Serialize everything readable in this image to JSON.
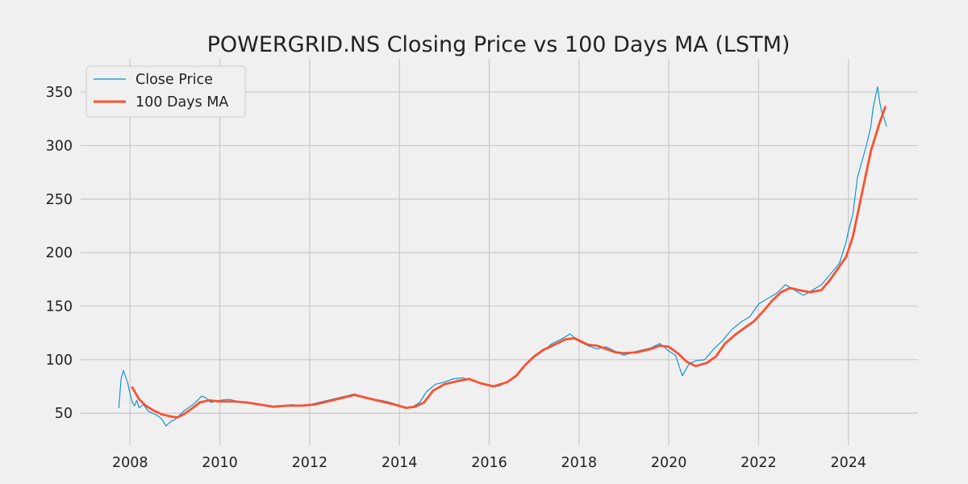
{
  "chart_data": {
    "type": "line",
    "title": "POWERGRID.NS Closing Price vs 100 Days MA (LSTM)",
    "xlabel": "",
    "ylabel": "",
    "xlim": [
      2006.9,
      2025.55
    ],
    "ylim": [
      20,
      381
    ],
    "x_ticks": [
      2008,
      2010,
      2012,
      2014,
      2016,
      2018,
      2020,
      2022,
      2024
    ],
    "x_tick_labels": [
      "2008",
      "2010",
      "2012",
      "2014",
      "2016",
      "2018",
      "2020",
      "2022",
      "2024"
    ],
    "y_ticks": [
      50,
      100,
      150,
      200,
      250,
      300,
      350
    ],
    "y_tick_labels": [
      "50",
      "100",
      "150",
      "200",
      "250",
      "300",
      "350"
    ],
    "grid": true,
    "legend_position": "top-left",
    "series": [
      {
        "name": "Close Price",
        "color": "#008fd5",
        "style": "thin-line",
        "x": [
          2007.75,
          2007.8,
          2007.85,
          2007.9,
          2007.95,
          2008.0,
          2008.05,
          2008.1,
          2008.15,
          2008.2,
          2008.3,
          2008.4,
          2008.5,
          2008.6,
          2008.7,
          2008.8,
          2008.9,
          2009.0,
          2009.1,
          2009.2,
          2009.3,
          2009.4,
          2009.5,
          2009.6,
          2009.7,
          2009.8,
          2009.9,
          2010.0,
          2010.2,
          2010.4,
          2010.6,
          2010.8,
          2011.0,
          2011.2,
          2011.4,
          2011.6,
          2011.8,
          2012.0,
          2012.2,
          2012.4,
          2012.6,
          2012.8,
          2013.0,
          2013.2,
          2013.4,
          2013.6,
          2013.8,
          2014.0,
          2014.15,
          2014.3,
          2014.45,
          2014.6,
          2014.8,
          2015.0,
          2015.2,
          2015.4,
          2015.6,
          2015.8,
          2016.0,
          2016.2,
          2016.4,
          2016.6,
          2016.8,
          2017.0,
          2017.2,
          2017.4,
          2017.6,
          2017.8,
          2018.0,
          2018.2,
          2018.4,
          2018.6,
          2018.8,
          2019.0,
          2019.2,
          2019.4,
          2019.6,
          2019.8,
          2020.0,
          2020.15,
          2020.3,
          2020.45,
          2020.6,
          2020.8,
          2021.0,
          2021.2,
          2021.4,
          2021.6,
          2021.8,
          2022.0,
          2022.2,
          2022.4,
          2022.6,
          2022.8,
          2023.0,
          2023.2,
          2023.4,
          2023.6,
          2023.8,
          2023.95,
          2024.0,
          2024.1,
          2024.2,
          2024.3,
          2024.4,
          2024.5,
          2024.55,
          2024.6,
          2024.65,
          2024.7,
          2024.75,
          2024.8,
          2024.85
        ],
        "values": [
          55,
          82,
          90,
          84,
          78,
          68,
          60,
          57,
          62,
          55,
          58,
          52,
          50,
          48,
          45,
          38,
          42,
          44,
          48,
          52,
          55,
          58,
          62,
          66,
          64,
          60,
          61,
          62,
          63,
          61,
          60,
          58,
          57,
          56,
          57,
          58,
          57,
          58,
          60,
          62,
          64,
          66,
          68,
          65,
          63,
          62,
          60,
          57,
          55,
          56,
          60,
          70,
          77,
          79,
          82,
          83,
          81,
          78,
          76,
          75,
          79,
          84,
          95,
          102,
          108,
          115,
          119,
          124,
          117,
          113,
          110,
          112,
          108,
          104,
          107,
          109,
          111,
          115,
          108,
          104,
          85,
          96,
          99,
          100,
          110,
          118,
          128,
          135,
          140,
          152,
          157,
          162,
          170,
          165,
          160,
          165,
          170,
          180,
          190,
          210,
          220,
          236,
          270,
          285,
          300,
          318,
          335,
          345,
          355,
          340,
          330,
          325,
          318
        ]
      },
      {
        "name": "100 Days MA",
        "color": "#fc4f30",
        "style": "thick-line",
        "x": [
          2008.05,
          2008.2,
          2008.35,
          2008.5,
          2008.7,
          2008.9,
          2009.05,
          2009.2,
          2009.4,
          2009.55,
          2009.75,
          2010.0,
          2010.3,
          2010.6,
          2010.9,
          2011.2,
          2011.5,
          2011.8,
          2012.1,
          2012.4,
          2012.7,
          2013.0,
          2013.3,
          2013.6,
          2013.9,
          2014.15,
          2014.35,
          2014.55,
          2014.75,
          2015.0,
          2015.3,
          2015.55,
          2015.8,
          2016.1,
          2016.4,
          2016.6,
          2016.8,
          2017.0,
          2017.2,
          2017.45,
          2017.7,
          2017.9,
          2018.05,
          2018.2,
          2018.4,
          2018.6,
          2018.8,
          2019.0,
          2019.3,
          2019.6,
          2019.8,
          2020.0,
          2020.2,
          2020.4,
          2020.6,
          2020.85,
          2021.05,
          2021.25,
          2021.5,
          2021.7,
          2021.9,
          2022.1,
          2022.3,
          2022.5,
          2022.7,
          2022.9,
          2023.15,
          2023.4,
          2023.6,
          2023.8,
          2023.95,
          2024.1,
          2024.3,
          2024.5,
          2024.7,
          2024.82
        ],
        "values": [
          74,
          63,
          57,
          53,
          49,
          47,
          46,
          49,
          55,
          60,
          62,
          61,
          61,
          60,
          58,
          56,
          57,
          57,
          58,
          61,
          64,
          67,
          64,
          61,
          58,
          55,
          56,
          60,
          71,
          77,
          80,
          82,
          78,
          75,
          79,
          85,
          95,
          103,
          109,
          114,
          119,
          120,
          117,
          114,
          113,
          110,
          107,
          106,
          107,
          110,
          113,
          112,
          106,
          98,
          94,
          97,
          103,
          115,
          124,
          130,
          136,
          145,
          155,
          163,
          167,
          165,
          163,
          165,
          175,
          187,
          196,
          215,
          255,
          295,
          322,
          336
        ]
      }
    ]
  }
}
